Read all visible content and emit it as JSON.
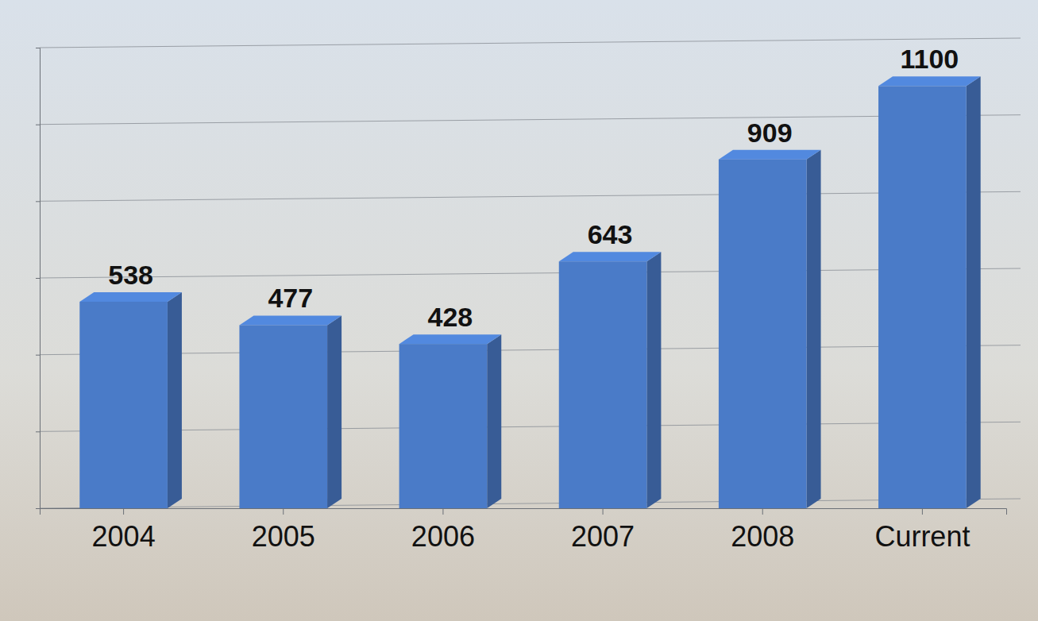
{
  "chart_data": {
    "type": "bar",
    "categories": [
      "2004",
      "2005",
      "2006",
      "2007",
      "2008",
      "Current"
    ],
    "values": [
      538,
      477,
      428,
      643,
      909,
      1100
    ],
    "color": "#4a7bc8",
    "ylim": [
      0,
      1200
    ],
    "yticks": [
      0,
      200,
      400,
      600,
      800,
      1000,
      1200
    ],
    "grid": true,
    "data_labels": true,
    "tick_labels": "x"
  }
}
